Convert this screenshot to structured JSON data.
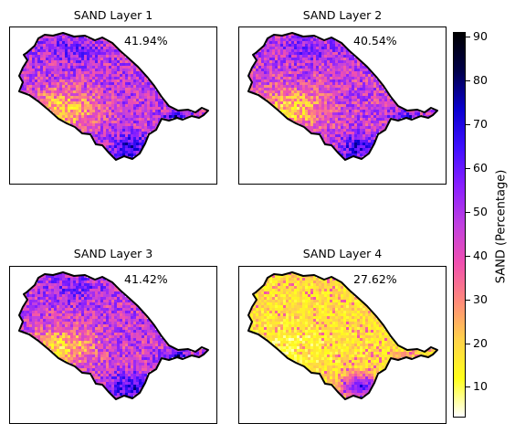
{
  "chart_data": {
    "type": "heatmap",
    "variable_label": "SAND (Percentage)",
    "colorbar": {
      "min": 3,
      "max": 91,
      "ticks": [
        10,
        20,
        30,
        40,
        50,
        60,
        70,
        80,
        90
      ],
      "colormap": "gnuplot2_r",
      "colors": [
        "#ffffff",
        "#ffff1a",
        "#ffd24a",
        "#ff8a7a",
        "#f050b0",
        "#c040e0",
        "#8a20ff",
        "#4010ff",
        "#0a00d0",
        "#00004a",
        "#000000"
      ]
    },
    "panels": [
      {
        "title": "SAND Layer 1",
        "value_label": "41.94%",
        "mean": 41.94
      },
      {
        "title": "SAND Layer 2",
        "value_label": "40.54%",
        "mean": 40.54
      },
      {
        "title": "SAND Layer 3",
        "value_label": "41.42%",
        "mean": 41.42
      },
      {
        "title": "SAND Layer 4",
        "value_label": "27.62%",
        "mean": 27.62
      }
    ]
  }
}
